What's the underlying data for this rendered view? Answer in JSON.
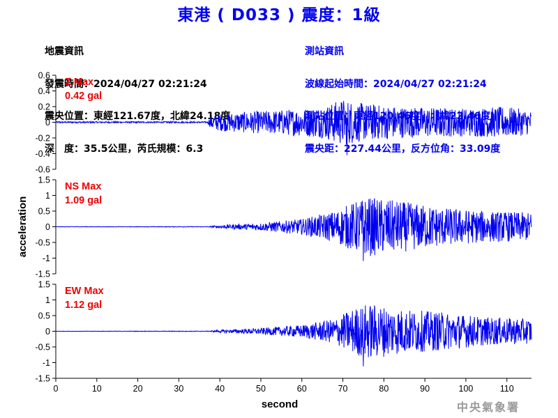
{
  "title": "東港 ( D033 ) 震度：1級",
  "quake_info": {
    "heading": "地震資訊",
    "time": "發震時間：2024/04/27 02:21:24",
    "location": "震央位置：東經121.67度，北緯24.18度",
    "depth_mag": "深　度：35.5公里，芮氏規模：6.3"
  },
  "station_info": {
    "heading": "測站資訊",
    "onset": "波線起始時間：2024/04/27 02:21:24",
    "location": "測站位置：東經120.46度，北緯22.46度",
    "distance": "震央距：227.44公里，反方位角：33.09度"
  },
  "agency": "中央氣象署",
  "colors": {
    "title": "#0000ee",
    "trace": "#0000ee",
    "max_label": "#ee0000",
    "station_info": "#0000ee"
  },
  "chart_data": [
    {
      "type": "line",
      "component": "Z",
      "max_label": "Z Max",
      "max_value": "0.42 gal",
      "ylim": [
        -0.6,
        0.6
      ],
      "yticks": [
        "0.6",
        "0.4",
        "0.2",
        "0",
        "-0.2",
        "-0.4",
        "-0.6"
      ],
      "xlim": [
        0,
        116
      ],
      "onset_s": 37,
      "peak_time_s": 71,
      "peak_amp": 0.42,
      "envelope": [
        [
          0,
          0.01
        ],
        [
          37,
          0.01
        ],
        [
          38,
          0.1
        ],
        [
          42,
          0.12
        ],
        [
          55,
          0.16
        ],
        [
          65,
          0.2
        ],
        [
          70,
          0.3
        ],
        [
          75,
          0.24
        ],
        [
          85,
          0.2
        ],
        [
          100,
          0.18
        ],
        [
          110,
          0.2
        ],
        [
          116,
          0.15
        ]
      ],
      "grid": false,
      "show_x_ticks": false
    },
    {
      "type": "line",
      "component": "NS",
      "max_label": "NS Max",
      "max_value": "1.09 gal",
      "ylabel": "acceleration",
      "ylim": [
        -1.5,
        1.5
      ],
      "yticks": [
        "1.5",
        "1",
        "0.5",
        "0",
        "-0.5",
        "-1",
        "-1.5"
      ],
      "xlim": [
        0,
        116
      ],
      "onset_s": 37,
      "peak_time_s": 75,
      "peak_amp": 1.09,
      "envelope": [
        [
          0,
          0.005
        ],
        [
          37,
          0.01
        ],
        [
          40,
          0.05
        ],
        [
          50,
          0.12
        ],
        [
          60,
          0.25
        ],
        [
          68,
          0.5
        ],
        [
          72,
          0.75
        ],
        [
          76,
          0.95
        ],
        [
          85,
          0.8
        ],
        [
          95,
          0.6
        ],
        [
          105,
          0.5
        ],
        [
          116,
          0.45
        ]
      ],
      "grid": false,
      "show_x_ticks": false
    },
    {
      "type": "line",
      "component": "EW",
      "max_label": "EW Max",
      "max_value": "1.12 gal",
      "ylim": [
        -1.5,
        1.5
      ],
      "yticks": [
        "1.5",
        "1",
        "0.5",
        "0",
        "-0.5",
        "-1",
        "-1.5"
      ],
      "xlim": [
        0,
        116
      ],
      "xticks": [
        "0",
        "10",
        "20",
        "30",
        "40",
        "50",
        "60",
        "70",
        "80",
        "90",
        "100",
        "110"
      ],
      "xlabel": "second",
      "onset_s": 37,
      "peak_time_s": 75,
      "peak_amp": 1.12,
      "envelope": [
        [
          0,
          0.005
        ],
        [
          37,
          0.01
        ],
        [
          40,
          0.04
        ],
        [
          50,
          0.1
        ],
        [
          60,
          0.2
        ],
        [
          68,
          0.4
        ],
        [
          72,
          0.7
        ],
        [
          76,
          0.9
        ],
        [
          85,
          0.7
        ],
        [
          95,
          0.6
        ],
        [
          105,
          0.45
        ],
        [
          116,
          0.4
        ]
      ],
      "grid": false,
      "show_x_ticks": true
    }
  ]
}
